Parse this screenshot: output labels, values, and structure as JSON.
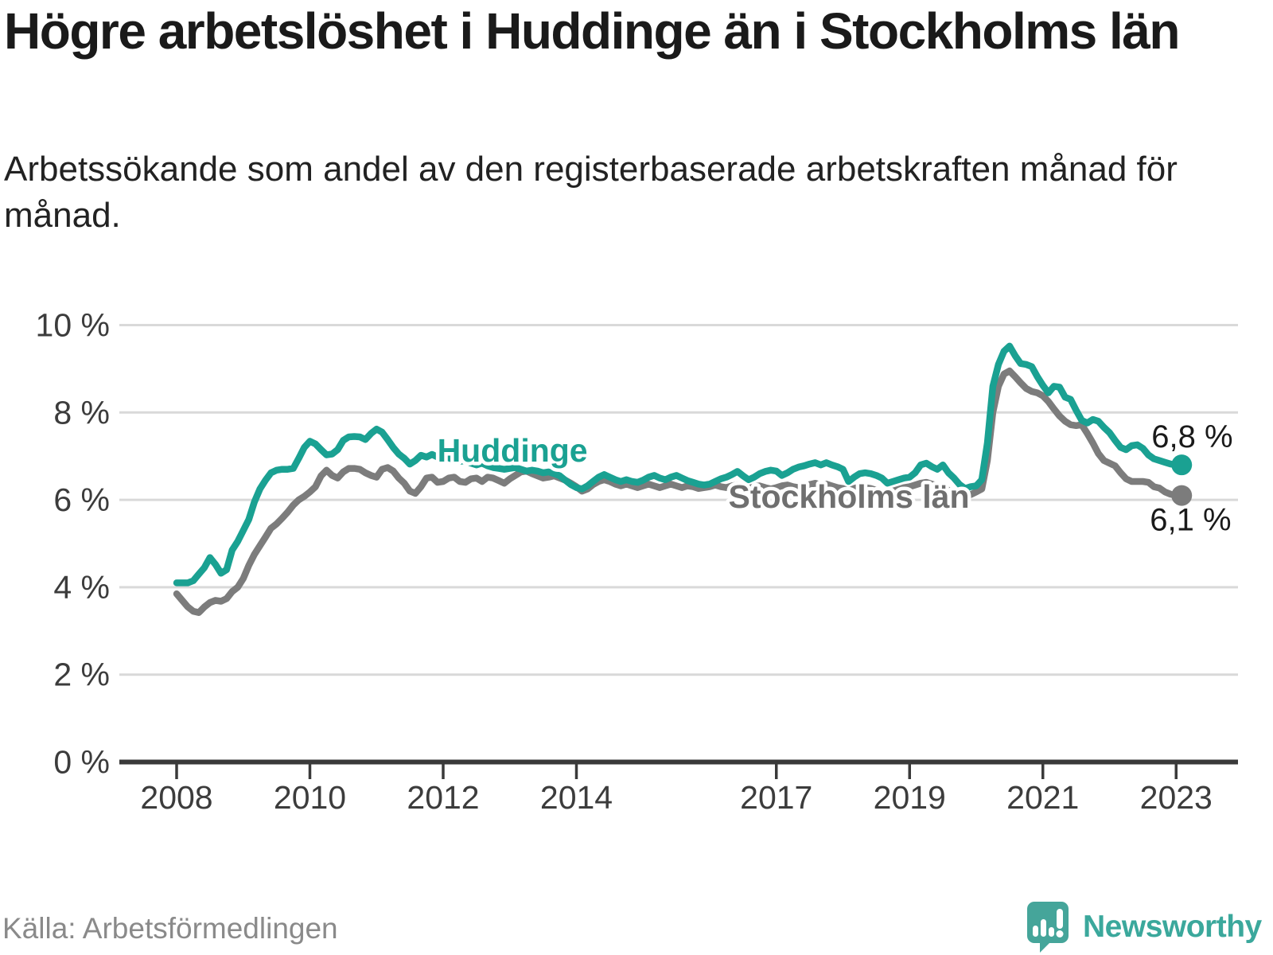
{
  "header": {
    "title": "Högre arbetslöshet i Huddinge än i Stockholms län",
    "subtitle": "Arbetssökande som andel av den registerbaserade arbetskraften månad för månad."
  },
  "footer": {
    "source": "Källa: Arbetsförmedlingen",
    "brand": "Newsworthy"
  },
  "colors": {
    "huddinge_teal": "#1aa192",
    "stockholm_gray": "#7c7c7c",
    "stockholm_label_gray": "#6f6f6f",
    "end_label_black": "#1a1a1a",
    "grid_gray": "#d9d9d9",
    "axis_dark": "#3a3a3a",
    "tick_text": "#3c3c3c",
    "brand_teal": "#3ba89c"
  },
  "chart_data": {
    "type": "line",
    "title": "Högre arbetslöshet i Huddinge än i Stockholms län",
    "subtitle": "Arbetssökande som andel av den registerbaserade arbetskraften månad för månad.",
    "xlabel": "",
    "ylabel": "",
    "x_unit": "month",
    "x_start_year": 2008,
    "x_start_month": 1,
    "x_end_year": 2023,
    "x_end_month": 2,
    "xticks": [
      2008,
      2010,
      2012,
      2014,
      2017,
      2019,
      2021,
      2023
    ],
    "ylim": [
      0,
      10
    ],
    "yticks": [
      0,
      2,
      4,
      6,
      8,
      10
    ],
    "ytick_suffix": " %",
    "grid": "horizontal",
    "legend_position": "inline-labels",
    "series": [
      {
        "name": "Stockholms län",
        "color": "#7c7c7c",
        "end_label": "6,1 %",
        "end_value": 6.1,
        "values": [
          3.85,
          3.7,
          3.55,
          3.45,
          3.42,
          3.55,
          3.65,
          3.7,
          3.68,
          3.74,
          3.9,
          4.0,
          4.2,
          4.5,
          4.75,
          4.95,
          5.15,
          5.35,
          5.45,
          5.58,
          5.72,
          5.88,
          6.0,
          6.08,
          6.18,
          6.3,
          6.55,
          6.68,
          6.56,
          6.5,
          6.64,
          6.72,
          6.72,
          6.7,
          6.62,
          6.56,
          6.52,
          6.7,
          6.74,
          6.66,
          6.5,
          6.38,
          6.2,
          6.15,
          6.3,
          6.5,
          6.52,
          6.4,
          6.42,
          6.5,
          6.52,
          6.42,
          6.4,
          6.48,
          6.5,
          6.42,
          6.52,
          6.5,
          6.44,
          6.38,
          6.48,
          6.56,
          6.64,
          6.66,
          6.6,
          6.55,
          6.5,
          6.52,
          6.55,
          6.5,
          6.45,
          6.38,
          6.3,
          6.2,
          6.25,
          6.35,
          6.42,
          6.46,
          6.42,
          6.36,
          6.32,
          6.36,
          6.32,
          6.28,
          6.32,
          6.36,
          6.32,
          6.28,
          6.32,
          6.36,
          6.32,
          6.28,
          6.32,
          6.3,
          6.26,
          6.28,
          6.3,
          6.34,
          6.3,
          6.28,
          6.32,
          6.34,
          6.3,
          6.26,
          6.3,
          6.32,
          6.28,
          6.25,
          6.28,
          6.32,
          6.34,
          6.3,
          6.28,
          6.32,
          6.35,
          6.38,
          6.34,
          6.36,
          6.32,
          6.28,
          6.26,
          6.2,
          6.26,
          6.3,
          6.28,
          6.26,
          6.22,
          6.18,
          6.15,
          6.2,
          6.24,
          6.28,
          6.3,
          6.34,
          6.38,
          6.4,
          6.36,
          6.32,
          6.28,
          6.22,
          6.15,
          6.1,
          6.08,
          6.12,
          6.18,
          6.25,
          6.9,
          8.0,
          8.6,
          8.88,
          8.95,
          8.82,
          8.68,
          8.55,
          8.48,
          8.45,
          8.38,
          8.25,
          8.08,
          7.92,
          7.8,
          7.72,
          7.7,
          7.72,
          7.52,
          7.3,
          7.06,
          6.9,
          6.84,
          6.78,
          6.62,
          6.48,
          6.42,
          6.42,
          6.42,
          6.4,
          6.3,
          6.27,
          6.18,
          6.13,
          6.1,
          6.1
        ]
      },
      {
        "name": "Huddinge",
        "color": "#1aa192",
        "end_label": "6,8 %",
        "end_value": 6.8,
        "values": [
          4.1,
          4.1,
          4.1,
          4.15,
          4.3,
          4.45,
          4.68,
          4.52,
          4.32,
          4.4,
          4.85,
          5.05,
          5.3,
          5.55,
          5.95,
          6.25,
          6.45,
          6.62,
          6.68,
          6.7,
          6.7,
          6.72,
          6.95,
          7.2,
          7.34,
          7.28,
          7.15,
          7.03,
          7.05,
          7.15,
          7.36,
          7.44,
          7.45,
          7.44,
          7.38,
          7.52,
          7.62,
          7.55,
          7.38,
          7.2,
          7.05,
          6.95,
          6.82,
          6.9,
          7.02,
          6.98,
          7.04,
          6.98,
          7.0,
          6.96,
          6.92,
          6.88,
          6.9,
          6.84,
          6.8,
          6.84,
          6.78,
          6.74,
          6.72,
          6.7,
          6.72,
          6.74,
          6.7,
          6.66,
          6.68,
          6.66,
          6.62,
          6.64,
          6.6,
          6.55,
          6.45,
          6.35,
          6.28,
          6.25,
          6.32,
          6.42,
          6.52,
          6.58,
          6.52,
          6.46,
          6.42,
          6.46,
          6.42,
          6.4,
          6.45,
          6.52,
          6.56,
          6.5,
          6.46,
          6.52,
          6.56,
          6.5,
          6.44,
          6.4,
          6.36,
          6.34,
          6.36,
          6.42,
          6.48,
          6.52,
          6.58,
          6.65,
          6.55,
          6.46,
          6.52,
          6.6,
          6.65,
          6.68,
          6.66,
          6.56,
          6.62,
          6.7,
          6.75,
          6.78,
          6.82,
          6.85,
          6.8,
          6.85,
          6.8,
          6.76,
          6.7,
          6.42,
          6.52,
          6.6,
          6.62,
          6.6,
          6.56,
          6.5,
          6.38,
          6.42,
          6.46,
          6.5,
          6.52,
          6.62,
          6.8,
          6.84,
          6.76,
          6.7,
          6.8,
          6.62,
          6.5,
          6.35,
          6.26,
          6.3,
          6.32,
          6.46,
          7.3,
          8.6,
          9.1,
          9.4,
          9.52,
          9.3,
          9.12,
          9.1,
          9.05,
          8.82,
          8.62,
          8.45,
          8.6,
          8.58,
          8.35,
          8.3,
          8.05,
          7.82,
          7.76,
          7.84,
          7.8,
          7.66,
          7.54,
          7.36,
          7.2,
          7.15,
          7.24,
          7.26,
          7.18,
          7.03,
          6.94,
          6.9,
          6.86,
          6.82,
          6.8,
          6.8
        ]
      }
    ],
    "series_labels": [
      {
        "text": "Huddinge",
        "color": "#1aa192",
        "x": 2013.04,
        "y": 6.88
      },
      {
        "text": "Stockholms län",
        "color": "#6f6f6f",
        "x": 2018.09,
        "y": 5.82
      }
    ]
  }
}
